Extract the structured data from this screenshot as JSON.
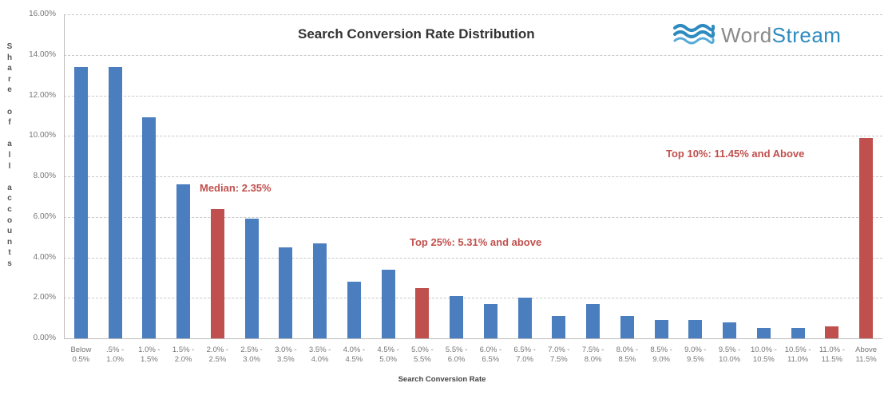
{
  "chart_data": {
    "type": "bar",
    "title": "Search Conversion Rate Distribution",
    "xlabel": "Search Conversion Rate",
    "ylabel": "Share of all accounts",
    "ylim": [
      0,
      16
    ],
    "yticks": [
      "0.00%",
      "2.00%",
      "4.00%",
      "6.00%",
      "8.00%",
      "10.00%",
      "12.00%",
      "14.00%",
      "16.00%"
    ],
    "grid": true,
    "legend": null,
    "categories": [
      [
        "Below",
        "0.5%"
      ],
      [
        ".5% -",
        "1.0%"
      ],
      [
        "1.0% -",
        "1.5%"
      ],
      [
        "1.5% -",
        "2.0%"
      ],
      [
        "2.0% -",
        "2.5%"
      ],
      [
        "2.5% -",
        "3.0%"
      ],
      [
        "3.0% -",
        "3.5%"
      ],
      [
        "3.5% -",
        "4.0%"
      ],
      [
        "4.0% -",
        "4.5%"
      ],
      [
        "4.5% -",
        "5.0%"
      ],
      [
        "5.0% -",
        "5.5%"
      ],
      [
        "5.5% -",
        "6.0%"
      ],
      [
        "6.0% -",
        "6.5%"
      ],
      [
        "6.5% -",
        "7.0%"
      ],
      [
        "7.0% -",
        "7.5%"
      ],
      [
        "7.5% -",
        "8.0%"
      ],
      [
        "8.0% -",
        "8.5%"
      ],
      [
        "8.5% -",
        "9.0%"
      ],
      [
        "9.0% -",
        "9.5%"
      ],
      [
        "9.5% -",
        "10.0%"
      ],
      [
        "10.0% -",
        "10.5%"
      ],
      [
        "10.5% -",
        "11.0%"
      ],
      [
        "11.0% -",
        "11.5%"
      ],
      [
        "Above",
        "11.5%"
      ]
    ],
    "values": [
      13.4,
      13.4,
      10.9,
      7.6,
      6.4,
      5.9,
      4.5,
      4.7,
      2.8,
      3.4,
      2.5,
      2.1,
      1.7,
      2.0,
      1.1,
      1.7,
      1.1,
      0.9,
      0.9,
      0.8,
      0.5,
      0.5,
      0.6,
      9.9
    ],
    "highlighted_indices": [
      4,
      10,
      22,
      23
    ],
    "colors": {
      "default": "#4a7ebf",
      "highlight": "#c0504d"
    },
    "annotations": [
      {
        "text": "Median: 2.35%",
        "x_index": 4
      },
      {
        "text": "Top 25%: 5.31% and above",
        "x_index": 10
      },
      {
        "text": "Top 10%: 11.45% and Above",
        "x_index": 22
      }
    ]
  },
  "header": {
    "title": "Search Conversion Rate Distribution",
    "logo": {
      "icon": "waves-icon",
      "word": "Word",
      "stream": "Stream"
    }
  },
  "ylabel_letters": [
    "S",
    "h",
    "a",
    "r",
    "e",
    "",
    "o",
    "f",
    "",
    "a",
    "l",
    "l",
    "",
    "a",
    "c",
    "c",
    "o",
    "u",
    "n",
    "t",
    "s"
  ]
}
